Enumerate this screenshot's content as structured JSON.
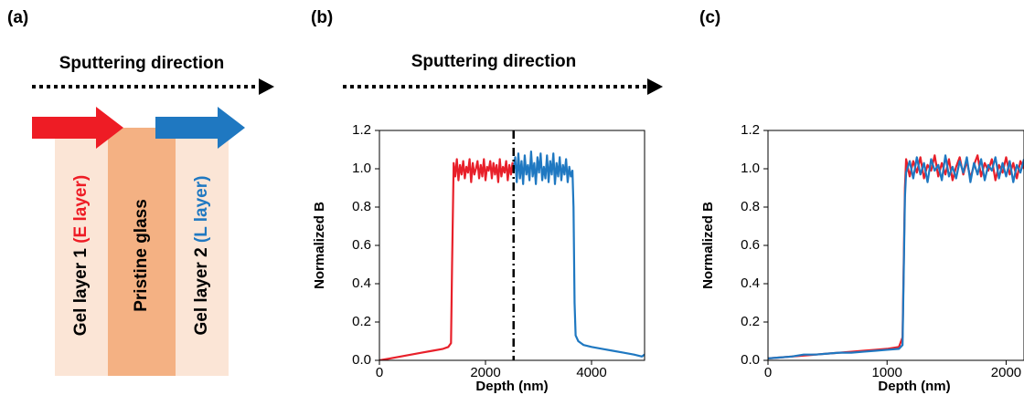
{
  "panel_labels": [
    "(a)",
    "(b)",
    "(c)"
  ],
  "diagram": {
    "arrow_label": "Sputtering direction",
    "layers": [
      {
        "text": "Gel layer 1",
        "tag": "(E layer)"
      },
      {
        "text": "Pristine glass"
      },
      {
        "text": "Gel layer 2",
        "tag": "(L layer)"
      }
    ]
  },
  "chart_data": [
    {
      "type": "line",
      "annotation": "Sputtering direction",
      "xlabel": "Depth (nm)",
      "ylabel": "Normalized B",
      "xlim": [
        0,
        5000
      ],
      "xticks": [
        0,
        2000,
        4000
      ],
      "ylim": [
        0,
        1.2
      ],
      "yticks": [
        {
          "value": 0,
          "label": "0.0"
        },
        0.2,
        0.4,
        0.6,
        0.8,
        {
          "value": 1,
          "label": "1.0"
        },
        1.2
      ],
      "vline": 2530,
      "series": [
        {
          "color": "#e8202a",
          "x": [
            0,
            100,
            200,
            400,
            600,
            800,
            1000,
            1200,
            1300,
            1350,
            1370,
            1400,
            1430,
            1460,
            1490,
            1520,
            1550,
            1580,
            1610,
            1640,
            1670,
            1700,
            1730,
            1760,
            1790,
            1820,
            1850,
            1880,
            1910,
            1940,
            1970,
            2000,
            2030,
            2060,
            2090,
            2120,
            2150,
            2180,
            2210,
            2240,
            2270,
            2300,
            2330,
            2360,
            2390,
            2420,
            2450,
            2480,
            2510,
            2530
          ],
          "values": [
            0,
            0.005,
            0.01,
            0.02,
            0.03,
            0.04,
            0.05,
            0.06,
            0.07,
            0.09,
            0.5,
            1.03,
            0.96,
            1.05,
            0.94,
            1.02,
            0.97,
            1.04,
            0.95,
            1.01,
            0.98,
            1.05,
            0.93,
            1.03,
            0.97,
            1.0,
            1.04,
            0.95,
            1.02,
            0.96,
            1.05,
            0.94,
            1.01,
            0.99,
            1.04,
            0.95,
            1.03,
            0.97,
            1.02,
            0.93,
            1.05,
            0.96,
            1.01,
            0.98,
            1.04,
            0.94,
            1.02,
            0.97,
            1.03,
            0.99
          ]
        },
        {
          "color": "#1f78c1",
          "x": [
            2530,
            2560,
            2590,
            2620,
            2650,
            2680,
            2710,
            2740,
            2770,
            2800,
            2830,
            2860,
            2890,
            2920,
            2950,
            2980,
            3010,
            3040,
            3070,
            3100,
            3130,
            3160,
            3190,
            3220,
            3250,
            3280,
            3310,
            3340,
            3370,
            3400,
            3430,
            3460,
            3490,
            3520,
            3550,
            3580,
            3610,
            3640,
            3660,
            3680,
            3700,
            3750,
            3850,
            4000,
            4200,
            4400,
            4600,
            4800,
            4950,
            5000
          ],
          "values": [
            0.99,
            1.06,
            0.93,
            1.08,
            0.95,
            1.04,
            0.92,
            1.07,
            0.97,
            1.02,
            0.94,
            1.09,
            0.96,
            1.03,
            0.92,
            1.06,
            0.98,
            1.08,
            0.94,
            1.01,
            0.95,
            1.07,
            0.93,
            1.04,
            0.97,
            1.08,
            0.92,
            1.03,
            0.96,
            1.06,
            0.94,
            1.02,
            0.97,
            1.05,
            0.93,
            1.01,
            0.96,
            0.99,
            0.8,
            0.3,
            0.13,
            0.1,
            0.08,
            0.07,
            0.06,
            0.05,
            0.04,
            0.03,
            0.02,
            0.03
          ]
        }
      ]
    },
    {
      "type": "line",
      "xlabel": "Depth (nm)",
      "ylabel": "Normalized B",
      "xlim": [
        0,
        2150
      ],
      "xticks": [
        0,
        1000,
        2000
      ],
      "ylim": [
        0,
        1.2
      ],
      "yticks": [
        {
          "value": 0,
          "label": "0.0"
        },
        0.2,
        0.4,
        0.6,
        0.8,
        {
          "value": 1,
          "label": "1.0"
        },
        1.2
      ],
      "x": [
        0,
        100,
        200,
        300,
        400,
        500,
        600,
        700,
        800,
        900,
        1000,
        1100,
        1130,
        1150,
        1160,
        1190,
        1220,
        1250,
        1280,
        1310,
        1340,
        1370,
        1400,
        1430,
        1460,
        1490,
        1520,
        1550,
        1580,
        1610,
        1640,
        1670,
        1700,
        1730,
        1760,
        1790,
        1820,
        1850,
        1880,
        1910,
        1940,
        1970,
        2000,
        2030,
        2060,
        2090,
        2120,
        2150
      ],
      "series": [
        {
          "color": "#e8202a",
          "values": [
            0.01,
            0.015,
            0.02,
            0.025,
            0.03,
            0.035,
            0.04,
            0.045,
            0.05,
            0.055,
            0.06,
            0.07,
            0.12,
            0.9,
            1.05,
            0.96,
            1.04,
            0.98,
            1.06,
            0.95,
            1.02,
            0.99,
            1.07,
            0.96,
            1.03,
            0.97,
            1.05,
            0.94,
            1.01,
            1.06,
            0.97,
            1.04,
            0.95,
            1.02,
            1.07,
            0.96,
            1.03,
            0.99,
            1.05,
            0.94,
            1.02,
            0.98,
            1.06,
            0.97,
            1.03,
            0.95,
            1.04,
            1.0
          ]
        },
        {
          "color": "#1f78c1",
          "values": [
            0.01,
            0.015,
            0.02,
            0.03,
            0.03,
            0.035,
            0.04,
            0.04,
            0.045,
            0.05,
            0.055,
            0.06,
            0.08,
            0.85,
            0.98,
            1.04,
            0.95,
            1.06,
            0.97,
            1.03,
            0.93,
            1.05,
            0.99,
            1.02,
            0.94,
            1.07,
            0.96,
            1.01,
            0.95,
            1.04,
            0.98,
            1.06,
            0.93,
            1.03,
            0.97,
            1.05,
            0.94,
            1.02,
            0.99,
            1.06,
            0.95,
            1.03,
            0.96,
            1.04,
            0.93,
            1.02,
            0.98,
            1.05
          ]
        }
      ]
    }
  ]
}
